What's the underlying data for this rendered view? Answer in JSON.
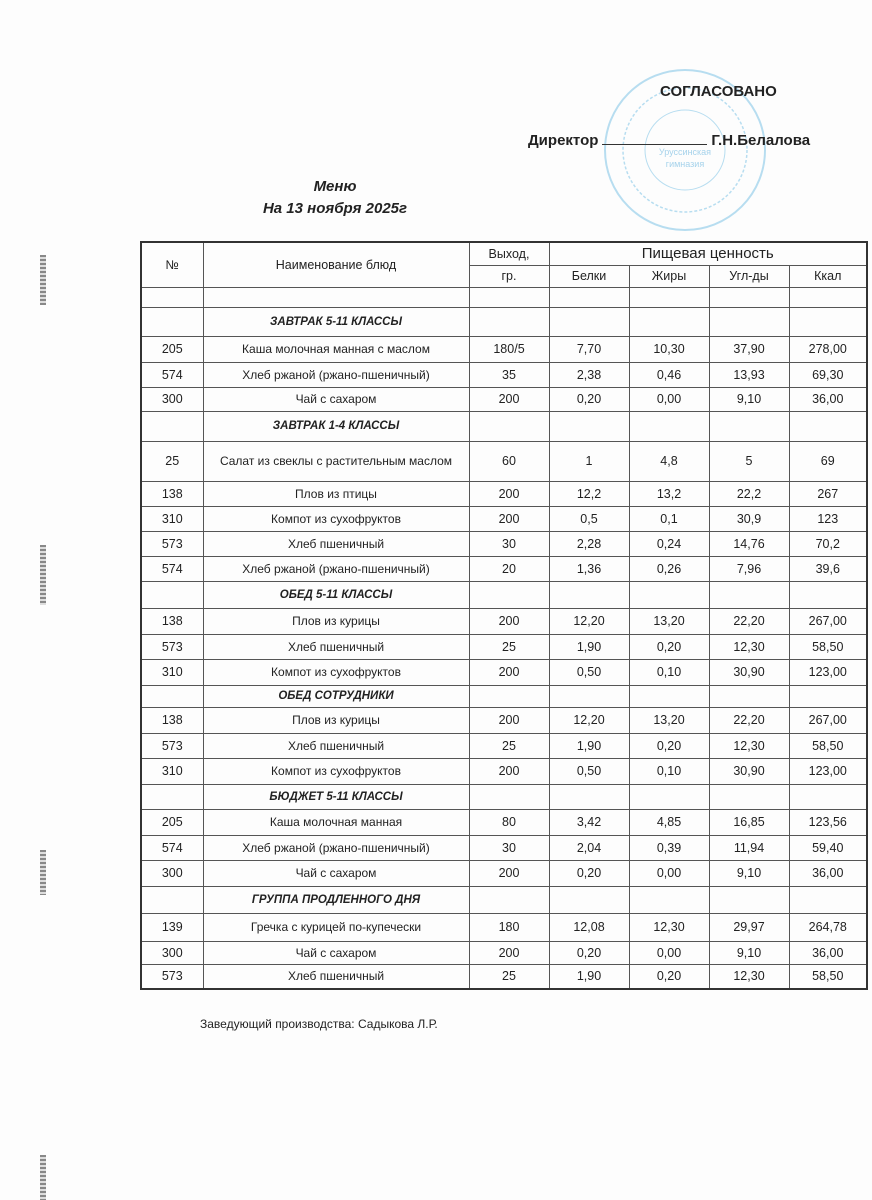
{
  "approval": {
    "label": "СОГЛАСОВАНО",
    "position": "Директор",
    "name": "Г.Н.Белалова"
  },
  "stamp": {
    "text": "«Уруссинская гимназия»",
    "color": "#7fc4e6"
  },
  "title": {
    "line1": "Меню",
    "line2": "На 13 ноября 2025г"
  },
  "table": {
    "headers": {
      "num": "№",
      "name": "Наименование блюд",
      "yield_top": "Выход,",
      "yield_bottom": "гр.",
      "nutrition": "Пищевая ценность",
      "protein": "Белки",
      "fat": "Жиры",
      "carbs": "Угл-ды",
      "kcal": "Ккал"
    },
    "rows": [
      {
        "section": "ЗАВТРАК 5-11 КЛАССЫ"
      },
      {
        "num": "205",
        "name": "Каша молочная манная с маслом",
        "yield": "180/5",
        "protein": "7,70",
        "fat": "10,30",
        "carbs": "37,90",
        "kcal": "278,00"
      },
      {
        "num": "574",
        "name": "Хлеб ржаной (ржано-пшеничный)",
        "yield": "35",
        "protein": "2,38",
        "fat": "0,46",
        "carbs": "13,93",
        "kcal": "69,30"
      },
      {
        "num": "300",
        "name": "Чай с сахаром",
        "yield": "200",
        "protein": "0,20",
        "fat": "0,00",
        "carbs": "9,10",
        "kcal": "36,00"
      },
      {
        "section": "ЗАВТРАК 1-4 КЛАССЫ"
      },
      {
        "num": "25",
        "name": "Салат из свеклы с растительным маслом",
        "yield": "60",
        "protein": "1",
        "fat": "4,8",
        "carbs": "5",
        "kcal": "69"
      },
      {
        "num": "138",
        "name": "Плов из птицы",
        "yield": "200",
        "protein": "12,2",
        "fat": "13,2",
        "carbs": "22,2",
        "kcal": "267"
      },
      {
        "num": "310",
        "name": "Компот из сухофруктов",
        "yield": "200",
        "protein": "0,5",
        "fat": "0,1",
        "carbs": "30,9",
        "kcal": "123"
      },
      {
        "num": "573",
        "name": "Хлеб пшеничный",
        "yield": "30",
        "protein": "2,28",
        "fat": "0,24",
        "carbs": "14,76",
        "kcal": "70,2"
      },
      {
        "num": "574",
        "name": "Хлеб ржаной (ржано-пшеничный)",
        "yield": "20",
        "protein": "1,36",
        "fat": "0,26",
        "carbs": "7,96",
        "kcal": "39,6"
      },
      {
        "section": "ОБЕД 5-11 КЛАССЫ"
      },
      {
        "num": "138",
        "name": "Плов из курицы",
        "yield": "200",
        "protein": "12,20",
        "fat": "13,20",
        "carbs": "22,20",
        "kcal": "267,00"
      },
      {
        "num": "573",
        "name": "Хлеб пшеничный",
        "yield": "25",
        "protein": "1,90",
        "fat": "0,20",
        "carbs": "12,30",
        "kcal": "58,50"
      },
      {
        "num": "310",
        "name": "Компот из сухофруктов",
        "yield": "200",
        "protein": "0,50",
        "fat": "0,10",
        "carbs": "30,90",
        "kcal": "123,00"
      },
      {
        "section": "ОБЕД СОТРУДНИКИ"
      },
      {
        "num": "138",
        "name": "Плов из курицы",
        "yield": "200",
        "protein": "12,20",
        "fat": "13,20",
        "carbs": "22,20",
        "kcal": "267,00"
      },
      {
        "num": "573",
        "name": "Хлеб пшеничный",
        "yield": "25",
        "protein": "1,90",
        "fat": "0,20",
        "carbs": "12,30",
        "kcal": "58,50"
      },
      {
        "num": "310",
        "name": "Компот из сухофруктов",
        "yield": "200",
        "protein": "0,50",
        "fat": "0,10",
        "carbs": "30,90",
        "kcal": "123,00"
      },
      {
        "section": "БЮДЖЕТ 5-11 КЛАССЫ"
      },
      {
        "num": "205",
        "name": "Каша молочная манная",
        "yield": "80",
        "protein": "3,42",
        "fat": "4,85",
        "carbs": "16,85",
        "kcal": "123,56"
      },
      {
        "num": "574",
        "name": "Хлеб ржаной (ржано-пшеничный)",
        "yield": "30",
        "protein": "2,04",
        "fat": "0,39",
        "carbs": "11,94",
        "kcal": "59,40"
      },
      {
        "num": "300",
        "name": "Чай с сахаром",
        "yield": "200",
        "protein": "0,20",
        "fat": "0,00",
        "carbs": "9,10",
        "kcal": "36,00"
      },
      {
        "section": "ГРУППА ПРОДЛЕННОГО ДНЯ"
      },
      {
        "num": "139",
        "name": "Гречка с курицей по-купечески",
        "yield": "180",
        "protein": "12,08",
        "fat": "12,30",
        "carbs": "29,97",
        "kcal": "264,78"
      },
      {
        "num": "300",
        "name": "Чай с сахаром",
        "yield": "200",
        "protein": "0,20",
        "fat": "0,00",
        "carbs": "9,10",
        "kcal": "36,00"
      },
      {
        "num": "573",
        "name": "Хлеб пшеничный",
        "yield": "25",
        "protein": "1,90",
        "fat": "0,20",
        "carbs": "12,30",
        "kcal": "58,50"
      }
    ]
  },
  "footer": "Заведующий производства: Садыкова Л.Р."
}
